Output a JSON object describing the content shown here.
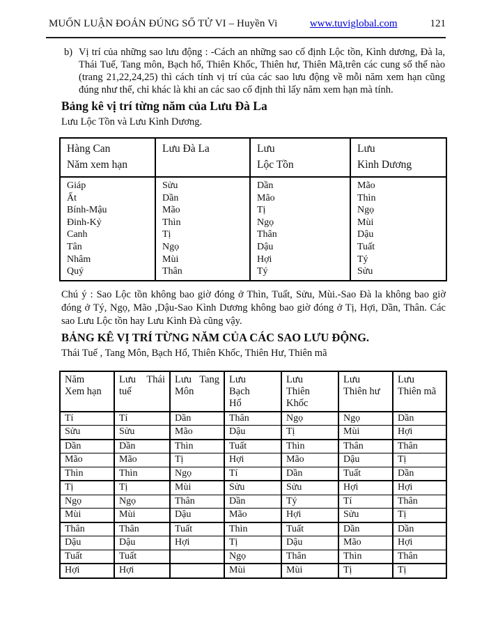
{
  "header": {
    "title": "MUỐN LUẬN ĐOÁN ĐÚNG SỐ TỬ VI – Huyền Vi",
    "link": "www.tuviglobal.com",
    "link_color": "#0000d4",
    "page_number": "121"
  },
  "intro": {
    "label": "b)",
    "text": "Vị trí của những sao lưu động : -Cách an những sao cố định Lộc tồn, Kình dương, Đà la, Thái Tuế, Tang môn, Bạch hổ, Thiên Khốc, Thiên hư, Thiên Mã,trên các cung số thế nào (trang 21,22,24,25) thì cách tính vị trí của các sao lưu động về mỗi năm xem hạn cũng đúng như thế, chỉ khác là khi an các sao cố định thì lấy năm xem hạn mà tính."
  },
  "section1": {
    "heading": "Bảng kê vị trí từng năm của Lưu Đà La",
    "subtitle": "Lưu Lộc Tồn và Lưu Kình Dương.",
    "table": {
      "headers": [
        {
          "lines": [
            "Hàng Can",
            "Năm xem hạn"
          ]
        },
        {
          "lines": [
            "Lưu Đà La"
          ]
        },
        {
          "lines": [
            "Lưu",
            "Lộc Tồn"
          ]
        },
        {
          "lines": [
            "Lưu",
            "Kình Dương"
          ]
        }
      ],
      "columns": [
        [
          "Giáp",
          "Ất",
          "Bính-Mậu",
          "Đinh-Kỷ",
          "Canh",
          "Tân",
          "Nhâm",
          "Quý"
        ],
        [
          "Sửu",
          "Dần",
          "Mão",
          "Thìn",
          "Tị",
          "Ngọ",
          "Mùi",
          "Thân"
        ],
        [
          "Dần",
          "Mão",
          "Tị",
          "Ngọ",
          "Thân",
          "Dậu",
          "Hợi",
          "Tý"
        ],
        [
          "Mão",
          "Thìn",
          "Ngọ",
          "Mùi",
          "Dậu",
          "Tuất",
          "Tý",
          "Sửu"
        ]
      ]
    }
  },
  "note": "Chú ý : Sao Lộc tồn không bao giờ đóng ở Thìn, Tuất, Sửu, Mùi.-Sao Đà la không bao giờ đóng ở Tý, Ngọ, Mão ,Dậu-Sao Kình Dương không bao giờ đóng ở Tị, Hợi, Dần, Thân. Các sao Lưu Lộc tồn hay Lưu Kình Đà cũng vậy.",
  "section2": {
    "heading": "BẢNG KÊ VỊ TRÍ TỪNG NĂM CỦA CÁC SAO LƯU ĐỘNG.",
    "subtitle": "Thái Tuế , Tang Môn, Bạch Hổ, Thiên Khốc, Thiên Hư, Thiên mã",
    "table": {
      "headers": [
        {
          "lines": [
            "Năm",
            "Xem hạn"
          ]
        },
        {
          "lines": [
            "Lưu Thái",
            "tuế"
          ],
          "spread": true
        },
        {
          "lines": [
            "Lưu Tang",
            "Môn"
          ],
          "spread": true
        },
        {
          "lines": [
            "Lưu",
            "Bạch",
            "Hổ"
          ]
        },
        {
          "lines": [
            "Lưu",
            "Thiên",
            "Khốc"
          ]
        },
        {
          "lines": [
            "Lưu",
            "Thiên hư"
          ]
        },
        {
          "lines": [
            "Lưu",
            "Thiên mã"
          ]
        }
      ],
      "rows": [
        [
          "Tí",
          "Tí",
          "Dần",
          "Thân",
          "Ngọ",
          "Ngọ",
          "Dần"
        ],
        [
          "Sửu",
          "Sửu",
          "Mão",
          "Dậu",
          "Tị",
          "Mùi",
          "Hợi"
        ],
        [
          "Dần",
          "Dần",
          "Thìn",
          "Tuất",
          "Thìn",
          "Thân",
          "Thân"
        ],
        [
          "Mão",
          "Mão",
          "Tị",
          "Hợi",
          "Mão",
          "Dậu",
          "Tị"
        ],
        [
          "Thìn",
          "Thìn",
          "Ngọ",
          "Tí",
          "Dần",
          "Tuất",
          "Dần"
        ],
        [
          "Tị",
          "Tị",
          "Mùi",
          "Sửu",
          "Sửu",
          "Hợi",
          "Hợi"
        ],
        [
          "Ngọ",
          "Ngọ",
          "Thân",
          "Dần",
          "Tý",
          "Tí",
          "Thân"
        ],
        [
          "Mùi",
          "Mùi",
          "Dậu",
          "Mão",
          "Hợi",
          "Sửu",
          "Tị"
        ],
        [
          "Thân",
          "Thân",
          "Tuất",
          "Thìn",
          "Tuất",
          "Dần",
          "Dần"
        ],
        [
          "Dậu",
          "Dậu",
          "Hợi",
          "Tị",
          "Dậu",
          "Mão",
          "Hợi"
        ],
        [
          "Tuất",
          "Tuất",
          "",
          "Ngọ",
          "Thân",
          "Thìn",
          "Thân"
        ],
        [
          "Hợi",
          "Hợi",
          "",
          "Mùi",
          "Mùi",
          "Tị",
          "Tị"
        ]
      ]
    }
  }
}
